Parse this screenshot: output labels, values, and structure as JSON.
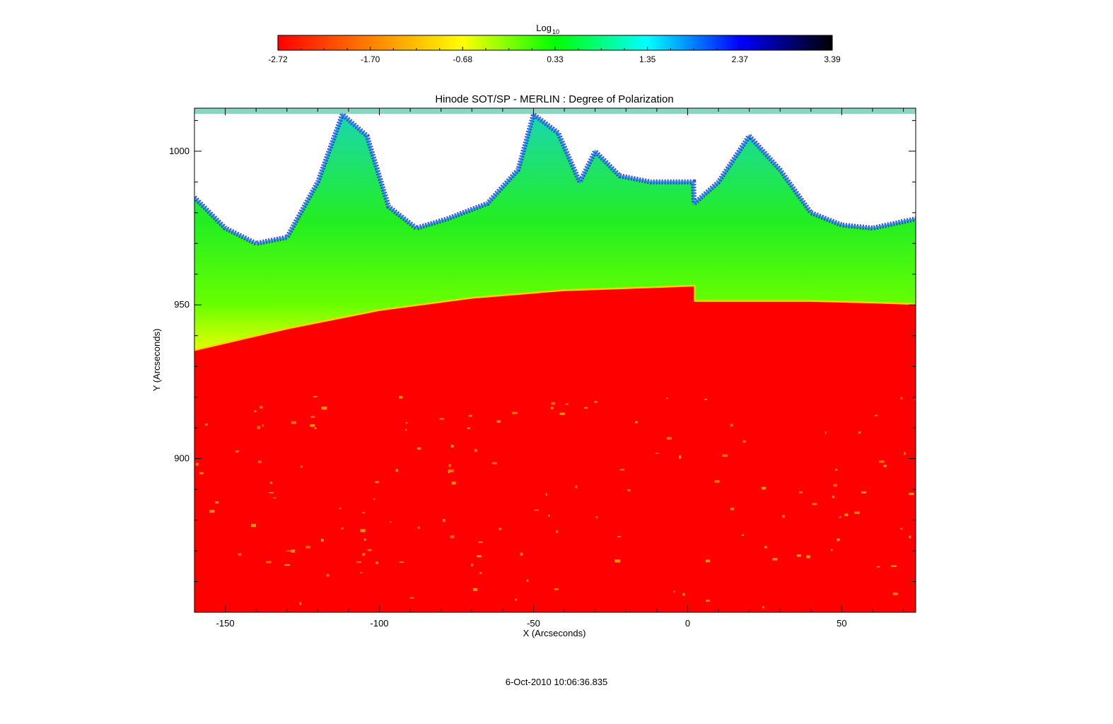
{
  "chart_data": {
    "type": "heatmap",
    "title": "Hinode SOT/SP - MERLIN : Degree of Polarization",
    "xlabel": "X (Arcseconds)",
    "ylabel": "Y (Arcseconds)",
    "xlim": [
      -160,
      74
    ],
    "ylim": [
      850,
      1014
    ],
    "x_ticks": [
      -150,
      -100,
      -50,
      0,
      50
    ],
    "y_ticks": [
      900,
      950,
      1000
    ],
    "timestamp": "6-Oct-2010 10:06:36.835",
    "colorbar": {
      "label": "Log",
      "label_subscript": "10",
      "ticks": [
        "-2.72",
        "-1.70",
        "-0.68",
        "0.33",
        "1.35",
        "2.37",
        "3.39"
      ],
      "min": -2.72,
      "max": 3.39,
      "stops": [
        "#ff0000",
        "#ff8000",
        "#ffff00",
        "#00ff00",
        "#00ffff",
        "#0000ff",
        "#000000"
      ]
    },
    "limb": {
      "left_segment": [
        [
          -160,
          935
        ],
        [
          -130,
          942
        ],
        [
          -100,
          948
        ],
        [
          -70,
          952
        ],
        [
          -40,
          954.5
        ],
        [
          -10,
          955.5
        ],
        [
          2,
          956
        ]
      ],
      "right_segment": [
        [
          2,
          951
        ],
        [
          20,
          951
        ],
        [
          40,
          951
        ],
        [
          60,
          950.5
        ],
        [
          74,
          950
        ]
      ]
    },
    "off_limb_gap_envelope": [
      [
        -160,
        985
      ],
      [
        -150,
        975
      ],
      [
        -140,
        970
      ],
      [
        -130,
        972
      ],
      [
        -120,
        990
      ],
      [
        -112,
        1012
      ],
      [
        -104,
        1005
      ],
      [
        -97,
        982
      ],
      [
        -88,
        975
      ],
      [
        -78,
        978
      ],
      [
        -65,
        983
      ],
      [
        -55,
        994
      ],
      [
        -50,
        1012
      ],
      [
        -42,
        1006
      ],
      [
        -35,
        990
      ],
      [
        -30,
        1000
      ],
      [
        -22,
        992
      ],
      [
        -12,
        990
      ],
      [
        0,
        990
      ],
      [
        1.9,
        990
      ],
      [
        2.1,
        983
      ],
      [
        10,
        990
      ],
      [
        20,
        1005
      ],
      [
        30,
        994
      ],
      [
        40,
        980
      ],
      [
        50,
        976
      ],
      [
        60,
        975
      ],
      [
        74,
        978
      ]
    ]
  }
}
